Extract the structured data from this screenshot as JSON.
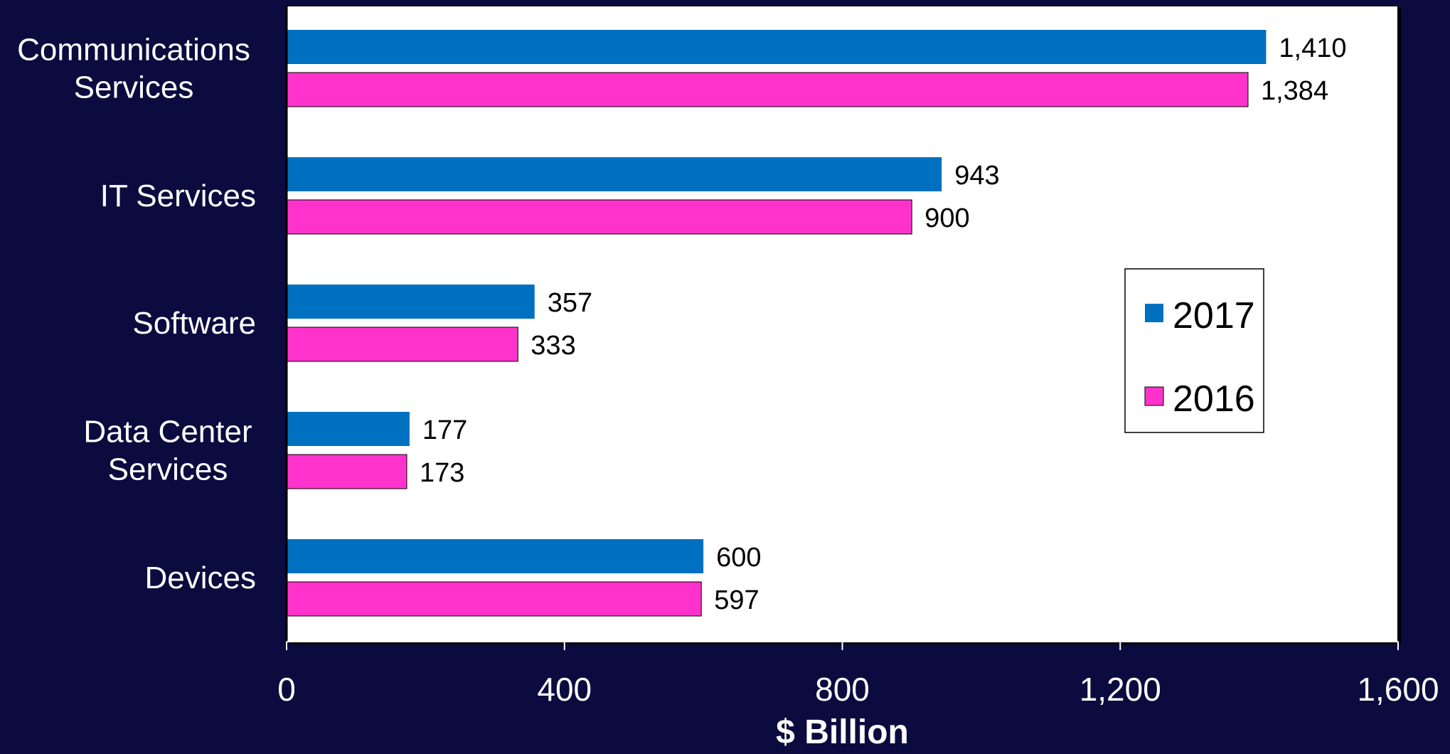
{
  "chart_data": {
    "type": "bar",
    "orientation": "horizontal",
    "categories": [
      [
        "Communications",
        "Services"
      ],
      [
        "IT Services"
      ],
      [
        "Software"
      ],
      [
        "Data Center",
        "Services"
      ],
      [
        "Devices"
      ]
    ],
    "series": [
      {
        "name": "2017",
        "color": "#0070c0",
        "values": [
          1410,
          943,
          357,
          177,
          600
        ],
        "labels": [
          "1,410",
          "943",
          "357",
          "177",
          "600"
        ]
      },
      {
        "name": "2016",
        "color": "#ff33cc",
        "values": [
          1384,
          900,
          333,
          173,
          597
        ],
        "labels": [
          "1,384",
          "900",
          "333",
          "173",
          "597"
        ]
      }
    ],
    "xlabel": "$ Billion",
    "xlim": [
      0,
      1600
    ],
    "x_ticks": [
      0,
      400,
      800,
      1200,
      1600
    ],
    "x_tick_labels": [
      "0",
      "400",
      "800",
      "1,200",
      "1,600"
    ],
    "grid": false,
    "legend_position": "right",
    "colors": {
      "background": "#0b0b3f",
      "plot_background": "#ffffff",
      "text": "#ffffff",
      "data_label": "#000000"
    }
  }
}
